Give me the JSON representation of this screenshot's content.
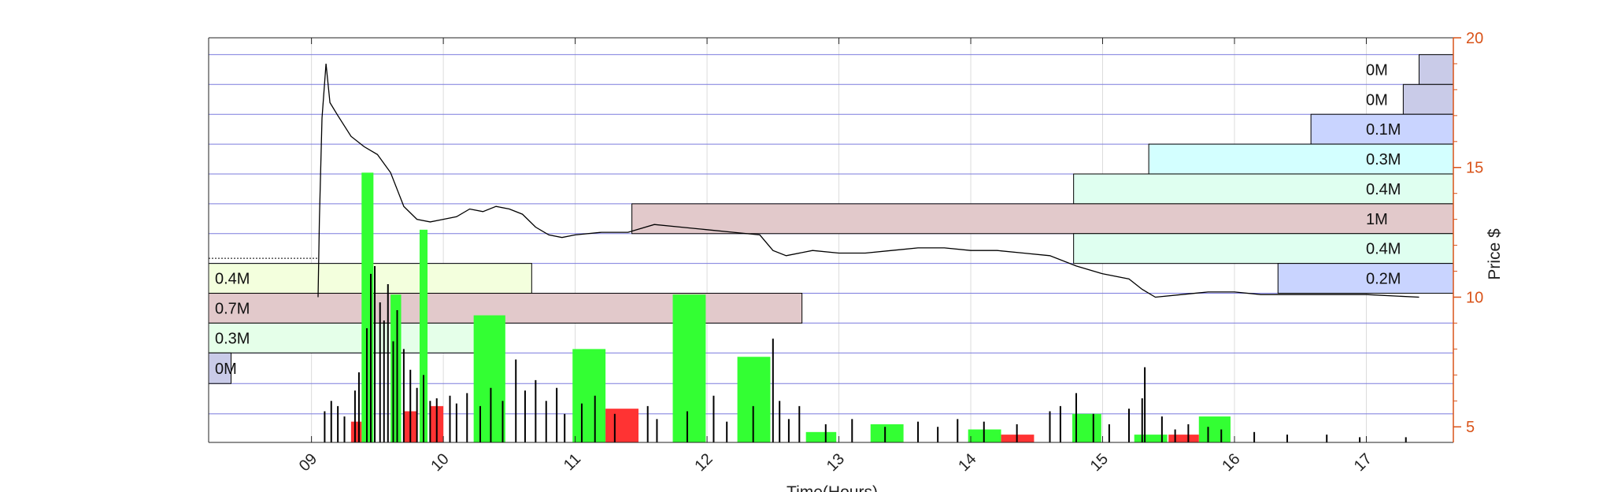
{
  "chart_data": {
    "type": "candlestick-volume-profile",
    "xlabel": "Time(Hours)",
    "ylabel": "Price $",
    "x_range": [
      8.22,
      17.66
    ],
    "x_ticks": [
      9,
      10,
      11,
      12,
      13,
      14,
      15,
      16,
      17
    ],
    "x_tick_labels": [
      "09",
      "10",
      "11",
      "12",
      "13",
      "14",
      "15",
      "16",
      "17"
    ],
    "y_range": [
      4.4,
      20
    ],
    "y_ticks": [
      5,
      10,
      15,
      20
    ],
    "y_tick_labels": [
      "5",
      "10",
      "15",
      "20"
    ],
    "price_band_edges": [
      4.33,
      5.5,
      6.67,
      7.85,
      9.0,
      10.15,
      11.3,
      12.45,
      13.6,
      14.75,
      15.9,
      17.05,
      18.2,
      19.35
    ],
    "colors": {
      "axis": "#d95319",
      "price": "#000000",
      "volume_up": "#33ff33",
      "volume_down": "#ff3333",
      "band_line": "#7b7bde"
    },
    "premarket_price": 11.5,
    "price_path": [
      [
        9.05,
        10.0
      ],
      [
        9.06,
        13.0
      ],
      [
        9.08,
        16.9
      ],
      [
        9.11,
        19.0
      ],
      [
        9.14,
        17.5
      ],
      [
        9.2,
        17.0
      ],
      [
        9.3,
        16.2
      ],
      [
        9.4,
        15.8
      ],
      [
        9.5,
        15.5
      ],
      [
        9.6,
        14.8
      ],
      [
        9.7,
        13.5
      ],
      [
        9.8,
        13.0
      ],
      [
        9.9,
        12.9
      ],
      [
        10.0,
        13.0
      ],
      [
        10.1,
        13.1
      ],
      [
        10.2,
        13.4
      ],
      [
        10.3,
        13.3
      ],
      [
        10.4,
        13.5
      ],
      [
        10.5,
        13.4
      ],
      [
        10.6,
        13.2
      ],
      [
        10.7,
        12.7
      ],
      [
        10.8,
        12.4
      ],
      [
        10.9,
        12.3
      ],
      [
        11.0,
        12.4
      ],
      [
        11.2,
        12.5
      ],
      [
        11.4,
        12.5
      ],
      [
        11.6,
        12.8
      ],
      [
        11.8,
        12.7
      ],
      [
        12.0,
        12.6
      ],
      [
        12.2,
        12.5
      ],
      [
        12.4,
        12.4
      ],
      [
        12.5,
        11.8
      ],
      [
        12.6,
        11.6
      ],
      [
        12.8,
        11.8
      ],
      [
        13.0,
        11.7
      ],
      [
        13.2,
        11.7
      ],
      [
        13.4,
        11.8
      ],
      [
        13.6,
        11.9
      ],
      [
        13.8,
        11.9
      ],
      [
        14.0,
        11.8
      ],
      [
        14.2,
        11.8
      ],
      [
        14.4,
        11.7
      ],
      [
        14.6,
        11.6
      ],
      [
        14.8,
        11.2
      ],
      [
        15.0,
        10.9
      ],
      [
        15.2,
        10.7
      ],
      [
        15.3,
        10.3
      ],
      [
        15.4,
        10.0
      ],
      [
        15.6,
        10.1
      ],
      [
        15.8,
        10.2
      ],
      [
        16.0,
        10.2
      ],
      [
        16.2,
        10.1
      ],
      [
        16.5,
        10.1
      ],
      [
        17.0,
        10.1
      ],
      [
        17.4,
        10.0
      ]
    ],
    "volume_bars_up": [
      {
        "x": [
          9.38,
          9.47
        ],
        "top": 14.8
      },
      {
        "x": [
          9.82,
          9.88
        ],
        "top": 12.6
      },
      {
        "x": [
          9.6,
          9.68
        ],
        "top": 10.1
      },
      {
        "x": [
          10.23,
          10.47
        ],
        "top": 9.3
      },
      {
        "x": [
          10.98,
          11.23
        ],
        "top": 8.0
      },
      {
        "x": [
          11.74,
          11.99
        ],
        "top": 10.1
      },
      {
        "x": [
          12.23,
          12.48
        ],
        "top": 7.7
      },
      {
        "x": [
          12.75,
          12.98
        ],
        "top": 4.8
      },
      {
        "x": [
          13.24,
          13.49
        ],
        "top": 5.1
      },
      {
        "x": [
          13.98,
          14.23
        ],
        "top": 4.9
      },
      {
        "x": [
          14.77,
          14.99
        ],
        "top": 5.5
      },
      {
        "x": [
          15.24,
          15.49
        ],
        "top": 4.7
      },
      {
        "x": [
          15.73,
          15.97
        ],
        "top": 5.4
      }
    ],
    "volume_bars_down": [
      {
        "x": [
          9.3,
          9.38
        ],
        "top": 5.2
      },
      {
        "x": [
          9.7,
          9.8
        ],
        "top": 5.6
      },
      {
        "x": [
          9.9,
          10.0
        ],
        "top": 5.8
      },
      {
        "x": [
          11.23,
          11.48
        ],
        "top": 5.7
      },
      {
        "x": [
          14.23,
          14.48
        ],
        "top": 4.7
      },
      {
        "x": [
          15.5,
          15.73
        ],
        "top": 4.7
      }
    ],
    "volume_spikes": [
      [
        9.1,
        5.6
      ],
      [
        9.15,
        6.0
      ],
      [
        9.2,
        5.8
      ],
      [
        9.25,
        5.4
      ],
      [
        9.33,
        6.4
      ],
      [
        9.36,
        7.1
      ],
      [
        9.42,
        8.8
      ],
      [
        9.45,
        10.9
      ],
      [
        9.48,
        11.2
      ],
      [
        9.52,
        9.8
      ],
      [
        9.55,
        9.1
      ],
      [
        9.58,
        10.5
      ],
      [
        9.62,
        8.3
      ],
      [
        9.65,
        9.5
      ],
      [
        9.7,
        8.0
      ],
      [
        9.75,
        7.2
      ],
      [
        9.8,
        6.5
      ],
      [
        9.85,
        7.0
      ],
      [
        9.9,
        6.0
      ],
      [
        9.95,
        6.1
      ],
      [
        10.05,
        6.2
      ],
      [
        10.1,
        5.9
      ],
      [
        10.18,
        6.3
      ],
      [
        10.28,
        5.8
      ],
      [
        10.36,
        6.5
      ],
      [
        10.45,
        6.0
      ],
      [
        10.55,
        7.6
      ],
      [
        10.62,
        6.4
      ],
      [
        10.7,
        6.8
      ],
      [
        10.78,
        6.0
      ],
      [
        10.86,
        6.5
      ],
      [
        10.92,
        5.5
      ],
      [
        11.05,
        5.9
      ],
      [
        11.15,
        6.2
      ],
      [
        11.3,
        5.5
      ],
      [
        11.55,
        5.8
      ],
      [
        11.62,
        5.3
      ],
      [
        11.85,
        5.6
      ],
      [
        12.05,
        6.2
      ],
      [
        12.15,
        5.2
      ],
      [
        12.35,
        5.8
      ],
      [
        12.5,
        8.4
      ],
      [
        12.55,
        6.0
      ],
      [
        12.62,
        5.3
      ],
      [
        12.7,
        5.8
      ],
      [
        12.9,
        5.1
      ],
      [
        13.1,
        5.3
      ],
      [
        13.35,
        5.0
      ],
      [
        13.6,
        5.2
      ],
      [
        13.75,
        5.0
      ],
      [
        13.9,
        5.3
      ],
      [
        14.1,
        5.2
      ],
      [
        14.35,
        5.1
      ],
      [
        14.6,
        5.6
      ],
      [
        14.68,
        5.8
      ],
      [
        14.8,
        6.3
      ],
      [
        14.93,
        5.5
      ],
      [
        15.05,
        5.1
      ],
      [
        15.2,
        5.7
      ],
      [
        15.3,
        6.1
      ],
      [
        15.32,
        7.3
      ],
      [
        15.45,
        5.4
      ],
      [
        15.55,
        4.9
      ],
      [
        15.65,
        5.1
      ],
      [
        15.8,
        5.0
      ],
      [
        15.9,
        4.9
      ],
      [
        16.15,
        4.8
      ],
      [
        16.4,
        4.7
      ],
      [
        16.7,
        4.7
      ],
      [
        16.95,
        4.6
      ],
      [
        17.3,
        4.6
      ]
    ],
    "profile_left_bins": [
      {
        "label": "0.4M",
        "low": 10.15,
        "high": 11.3,
        "x_right": 10.67,
        "fill": "#f3ffdd"
      },
      {
        "label": "0.7M",
        "low": 9.0,
        "high": 10.15,
        "x_right": 12.72,
        "fill": "#e2c9cb"
      },
      {
        "label": "0.3M",
        "low": 7.85,
        "high": 9.0,
        "x_right": 10.37,
        "fill": "#e5ffe9"
      },
      {
        "label": "0M",
        "low": 6.67,
        "high": 7.85,
        "x_right": 8.39,
        "fill": "#c9cbe8"
      }
    ],
    "profile_right_bins": [
      {
        "label": "0M",
        "low": 18.2,
        "high": 19.35,
        "x_left": 17.4,
        "fill": "#c9cbe8"
      },
      {
        "label": "0M",
        "low": 17.05,
        "high": 18.2,
        "x_left": 17.28,
        "fill": "#c9cbe8"
      },
      {
        "label": "0.1M",
        "low": 15.9,
        "high": 17.05,
        "x_left": 16.58,
        "fill": "#c9d4ff"
      },
      {
        "label": "0.3M",
        "low": 14.75,
        "high": 15.9,
        "x_left": 15.35,
        "fill": "#d3ffff"
      },
      {
        "label": "0.4M",
        "low": 13.6,
        "high": 14.75,
        "x_left": 14.78,
        "fill": "#dffff0"
      },
      {
        "label": "1M",
        "low": 12.45,
        "high": 13.6,
        "x_left": 11.43,
        "fill": "#e2c9cb"
      },
      {
        "label": "0.4M",
        "low": 11.3,
        "high": 12.45,
        "x_left": 14.78,
        "fill": "#dffff0"
      },
      {
        "label": "0.2M",
        "low": 10.15,
        "high": 11.3,
        "x_left": 16.33,
        "fill": "#c9d4ff"
      }
    ]
  }
}
